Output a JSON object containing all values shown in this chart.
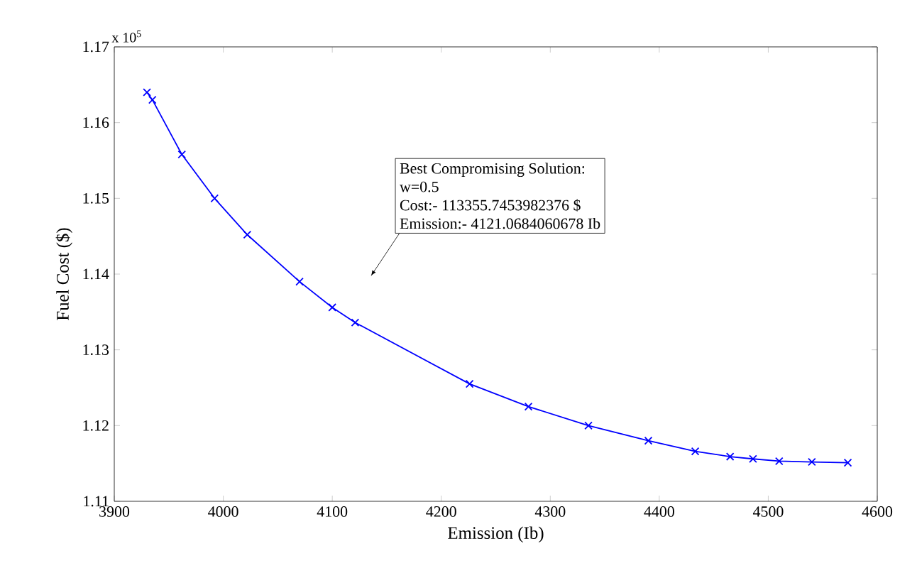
{
  "chart_data": {
    "type": "line",
    "xlabel": "Emission (Ib)",
    "ylabel": "Fuel Cost ($)",
    "x": [
      3930,
      3935,
      3962,
      3992,
      4022,
      4070,
      4100,
      4121,
      4226,
      4280,
      4335,
      4390,
      4433,
      4465,
      4486,
      4510,
      4540,
      4573
    ],
    "series": [
      {
        "color": "#0000ff",
        "values": [
          1.164,
          1.163,
          1.1558,
          1.15,
          1.1452,
          1.139,
          1.1356,
          1.1336,
          1.1255,
          1.1225,
          1.12,
          1.118,
          1.1166,
          1.1159,
          1.1156,
          1.1153,
          1.1152,
          1.1151
        ]
      }
    ],
    "marker": "cross",
    "grid": false,
    "xlim": [
      3900,
      4600
    ],
    "ylim": [
      1.11,
      1.17
    ],
    "xticks": [
      3900,
      4000,
      4100,
      4200,
      4300,
      4400,
      4500,
      4600
    ],
    "yticks": [
      1.11,
      1.12,
      1.13,
      1.14,
      1.15,
      1.16,
      1.17
    ],
    "annotations": [
      "Best Compromising Solution:",
      "w=0.5",
      "Cost:- 113355.7453982376 $",
      "Emission:- 4121.0684060678 Ib",
      "x 10$^{5}$"
    ]
  }
}
